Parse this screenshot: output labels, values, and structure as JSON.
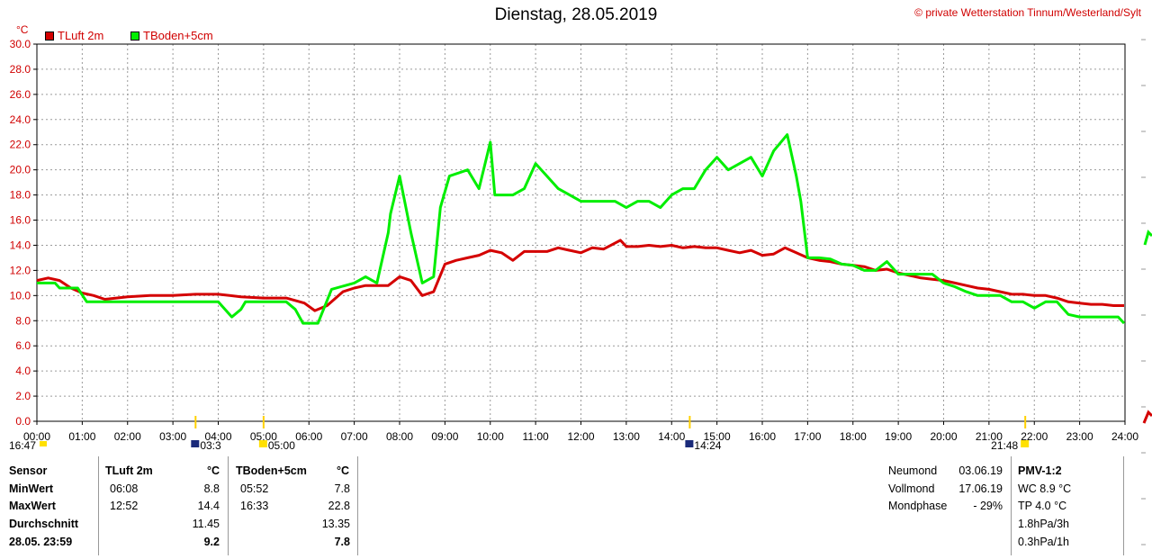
{
  "title": "Dienstag, 28.05.2019",
  "copyright": "© private Wetterstation Tinnum/Westerland/Sylt",
  "unit": "°C",
  "legend": [
    {
      "label": "TLuft 2m",
      "color": "#d40000"
    },
    {
      "label": "TBoden+5cm",
      "color": "#00ee00"
    }
  ],
  "chart_data": {
    "type": "line",
    "title": "Dienstag, 28.05.2019",
    "ylabel": "°C",
    "xlabel": "",
    "xlim": [
      0,
      24
    ],
    "ylim": [
      0,
      30
    ],
    "grid": true,
    "legend_position": "top-left",
    "x_ticks": [
      "00:00",
      "01:00",
      "02:00",
      "03:00",
      "04:00",
      "05:00",
      "06:00",
      "07:00",
      "08:00",
      "09:00",
      "10:00",
      "11:00",
      "12:00",
      "13:00",
      "14:00",
      "15:00",
      "16:00",
      "17:00",
      "18:00",
      "19:00",
      "20:00",
      "21:00",
      "22:00",
      "23:00",
      "24:00"
    ],
    "y_ticks": [
      "0.0",
      "2.0",
      "4.0",
      "6.0",
      "8.0",
      "10.0",
      "12.0",
      "14.0",
      "16.0",
      "18.0",
      "20.0",
      "22.0",
      "24.0",
      "26.0",
      "28.0",
      "30.0"
    ],
    "series": [
      {
        "name": "TLuft 2m",
        "color": "#d40000",
        "x": [
          0,
          0.25,
          0.5,
          0.75,
          1,
          1.25,
          1.5,
          1.75,
          2,
          2.5,
          3,
          3.5,
          4,
          4.5,
          5,
          5.5,
          5.9,
          6.13,
          6.4,
          6.75,
          7,
          7.25,
          7.5,
          7.75,
          8,
          8.25,
          8.5,
          8.75,
          9,
          9.25,
          9.5,
          9.75,
          10,
          10.25,
          10.5,
          10.75,
          11,
          11.25,
          11.5,
          11.75,
          12,
          12.25,
          12.5,
          12.87,
          13,
          13.25,
          13.5,
          13.75,
          14,
          14.25,
          14.5,
          14.75,
          15,
          15.25,
          15.5,
          15.75,
          16,
          16.25,
          16.5,
          16.75,
          17,
          17.25,
          17.5,
          17.75,
          18,
          18.25,
          18.5,
          18.75,
          19,
          19.25,
          19.5,
          19.75,
          20,
          20.25,
          20.5,
          20.75,
          21,
          21.25,
          21.5,
          21.75,
          22,
          22.25,
          22.5,
          22.75,
          23,
          23.25,
          23.5,
          23.75,
          23.98
        ],
        "y": [
          11.2,
          11.4,
          11.2,
          10.6,
          10.2,
          10.0,
          9.7,
          9.8,
          9.9,
          10.0,
          10.0,
          10.1,
          10.1,
          9.9,
          9.8,
          9.8,
          9.4,
          8.8,
          9.2,
          10.3,
          10.6,
          10.8,
          10.8,
          10.8,
          11.5,
          11.2,
          10.0,
          10.3,
          12.5,
          12.8,
          13.0,
          13.2,
          13.6,
          13.4,
          12.8,
          13.5,
          13.5,
          13.5,
          13.8,
          13.6,
          13.4,
          13.8,
          13.7,
          14.4,
          13.9,
          13.9,
          14.0,
          13.9,
          14.0,
          13.8,
          13.9,
          13.8,
          13.8,
          13.6,
          13.4,
          13.6,
          13.2,
          13.3,
          13.8,
          13.4,
          13.0,
          12.8,
          12.7,
          12.5,
          12.4,
          12.3,
          12.0,
          12.1,
          11.8,
          11.6,
          11.4,
          11.3,
          11.2,
          11.0,
          10.8,
          10.6,
          10.5,
          10.3,
          10.1,
          10.1,
          10.0,
          10.0,
          9.8,
          9.5,
          9.4,
          9.3,
          9.3,
          9.2,
          9.2
        ]
      },
      {
        "name": "TBoden+5cm",
        "color": "#00ee00",
        "x": [
          0,
          0.4,
          0.5,
          0.9,
          1.1,
          1.5,
          2,
          2.5,
          3,
          3.5,
          4,
          4.3,
          4.5,
          4.6,
          5,
          5.5,
          5.7,
          5.87,
          6.2,
          6.5,
          7,
          7.25,
          7.5,
          7.75,
          7.8,
          8,
          8.25,
          8.5,
          8.75,
          8.9,
          9.1,
          9.5,
          9.75,
          10,
          10.1,
          10.25,
          10.5,
          10.75,
          11,
          11.25,
          11.5,
          11.75,
          12,
          12.25,
          12.5,
          12.75,
          13,
          13.25,
          13.5,
          13.75,
          14,
          14.25,
          14.5,
          14.75,
          15,
          15.25,
          15.5,
          15.75,
          16,
          16.25,
          16.55,
          16.75,
          16.85,
          17,
          17.25,
          17.5,
          17.75,
          18,
          18.25,
          18.5,
          18.75,
          19,
          19.5,
          19.75,
          20,
          20.25,
          20.5,
          20.75,
          21,
          21.25,
          21.5,
          21.75,
          22,
          22.25,
          22.5,
          22.75,
          23,
          23.5,
          23.85,
          23.98
        ],
        "y": [
          11.0,
          11.0,
          10.6,
          10.6,
          9.5,
          9.5,
          9.5,
          9.5,
          9.5,
          9.5,
          9.5,
          8.3,
          8.9,
          9.5,
          9.5,
          9.5,
          8.9,
          7.8,
          7.8,
          10.5,
          11.0,
          11.5,
          11.0,
          15.0,
          16.5,
          19.5,
          15.0,
          11.0,
          11.5,
          17.0,
          19.5,
          20.0,
          18.5,
          22.2,
          18.0,
          18.0,
          18.0,
          18.5,
          20.5,
          19.5,
          18.5,
          18.0,
          17.5,
          17.5,
          17.5,
          17.5,
          17.0,
          17.5,
          17.5,
          17.0,
          18.0,
          18.5,
          18.5,
          20.0,
          21.0,
          20.0,
          20.5,
          21.0,
          19.5,
          21.5,
          22.8,
          19.5,
          17.5,
          13.0,
          13.0,
          12.9,
          12.5,
          12.4,
          12.0,
          12.0,
          12.7,
          11.7,
          11.7,
          11.7,
          11.0,
          10.7,
          10.3,
          10.0,
          10.0,
          10.0,
          9.5,
          9.5,
          9.0,
          9.5,
          9.5,
          8.5,
          8.3,
          8.3,
          8.3,
          7.8
        ]
      }
    ],
    "annotations": [
      {
        "text": "16:47",
        "x": 0
      },
      {
        "text": "03:3",
        "x": 3.5
      },
      {
        "text": "05:00",
        "x": 5.0
      },
      {
        "text": "14:24",
        "x": 14.4
      },
      {
        "text": "21:48",
        "x": 21.8
      }
    ]
  },
  "table": {
    "col_sensor": "Sensor",
    "col_tluft": "TLuft 2m",
    "col_tboden": "TBoden+5cm",
    "unit": "°C",
    "rows": [
      {
        "label": "MinWert",
        "t1_time": "06:08",
        "t1_val": "8.8",
        "t2_time": "05:52",
        "t2_val": "7.8"
      },
      {
        "label": "MaxWert",
        "t1_time": "12:52",
        "t1_val": "14.4",
        "t2_time": "16:33",
        "t2_val": "22.8"
      },
      {
        "label": "Durchschnitt",
        "t1_time": "",
        "t1_val": "11.45",
        "t2_time": "",
        "t2_val": "13.35"
      },
      {
        "label": "28.05. 23:59",
        "t1_time": "",
        "t1_val": "9.2",
        "t2_time": "",
        "t2_val": "7.8"
      }
    ]
  },
  "moon": [
    {
      "label": "Neumond",
      "value": "03.06.19"
    },
    {
      "label": "Vollmond",
      "value": "17.06.19"
    },
    {
      "label": "Mondphase",
      "value": "- 29%"
    }
  ],
  "pmv": {
    "title": "PMV-1:2",
    "lines": [
      "WC 8.9 °C",
      "TP 4.0 °C",
      "1.8hPa/3h",
      "0.3hPa/1h"
    ]
  }
}
